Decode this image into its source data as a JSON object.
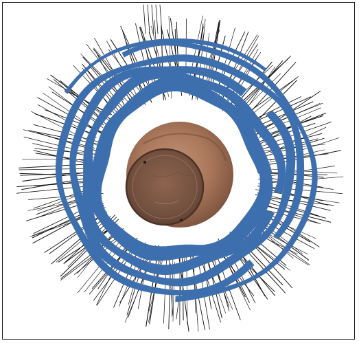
{
  "figure": {
    "alt": "",
    "colors": {
      "background": "#ffffff",
      "frame": "#1a1a1a",
      "camera_rays": "#141414",
      "camera_track": "#3d6fae",
      "object_light": "#b98a6c",
      "object_mid": "#9b6a4f",
      "object_dark": "#6b4938"
    },
    "elements": {
      "camera_rays": "camera-ray-lines",
      "camera_track": "camera-trajectory-bands",
      "object": "ceramic-pot-3d-model"
    }
  }
}
